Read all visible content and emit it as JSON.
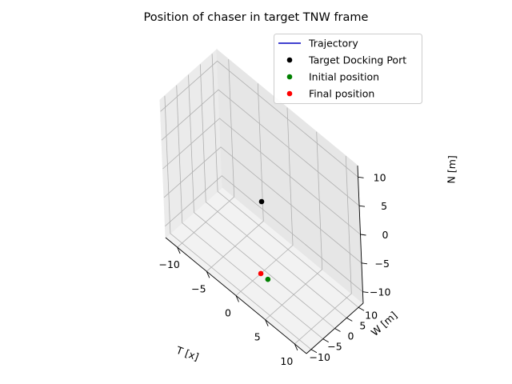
{
  "chart_data": {
    "type": "scatter3d",
    "title": "Position of chaser in target TNW frame",
    "xlabel": "T [x]",
    "ylabel": "W [m]",
    "zlabel": "N [m]",
    "xlim": [
      -12,
      12
    ],
    "ylim": [
      -12,
      12
    ],
    "zlim": [
      -12,
      12
    ],
    "xticks": [
      -10,
      -5,
      0,
      5,
      10
    ],
    "yticks": [
      -10,
      -5,
      0,
      5,
      10
    ],
    "zticks": [
      -10,
      -5,
      0,
      5,
      10
    ],
    "tick_labels": {
      "x": [
        "−10",
        "−5",
        "0",
        "5",
        "10"
      ],
      "y": [
        "−10",
        "−5",
        "0",
        "5",
        "10"
      ],
      "z": [
        "−10",
        "−5",
        "0",
        "5",
        "10"
      ]
    },
    "grid": true,
    "legend_position": "top-right",
    "series": [
      {
        "name": "Trajectory",
        "kind": "line",
        "color": "#0000bf",
        "points": []
      },
      {
        "name": "Target Docking Port",
        "kind": "marker",
        "color": "#000000",
        "points": [
          [
            0,
            0,
            0
          ]
        ]
      },
      {
        "name": "Initial position",
        "kind": "marker",
        "color": "#008000",
        "points": [
          [
            1.2,
            -1.5,
            -12
          ]
        ]
      },
      {
        "name": "Final position",
        "kind": "marker",
        "color": "#ff0000",
        "points": [
          [
            0,
            -1.5,
            -12
          ]
        ]
      }
    ]
  }
}
